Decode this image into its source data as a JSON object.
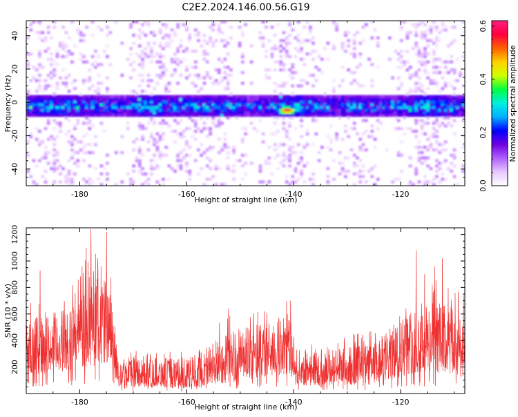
{
  "title": "C2E2.2024.146.00.56.G19",
  "chart_data": [
    {
      "type": "heatmap",
      "xlabel": "Height of straight line (km)",
      "ylabel": "Frequency (Hz)",
      "xlim": [
        -190,
        -108
      ],
      "ylim": [
        -50,
        49
      ],
      "xticks": [
        -180,
        -160,
        -140,
        -120
      ],
      "yticks": [
        -40,
        -20,
        0,
        20,
        40
      ],
      "colorbar": {
        "label": "Normalized spectral amplitude",
        "range": [
          0.0,
          0.62
        ],
        "ticks": [
          0.0,
          0.2,
          0.4,
          0.6
        ],
        "colors": [
          "#ffffff",
          "#e8c8ff",
          "#b060ff",
          "#7000e0",
          "#0000ff",
          "#00b0ff",
          "#00f0e0",
          "#00ff40",
          "#d0ff00",
          "#ffd000",
          "#ff6000",
          "#ff0040",
          "#ff2080"
        ]
      },
      "band": {
        "center_frequency": -3,
        "half_width": 6,
        "peak": {
          "x": -141.5,
          "y": -5.5,
          "value": 0.62
        }
      },
      "grid": false
    },
    {
      "type": "line",
      "xlabel": "Height of straight line (km)",
      "ylabel": "SNR (10 * v/v)",
      "xlim": [
        -190,
        -108
      ],
      "ylim": [
        0,
        1250
      ],
      "xticks": [
        -180,
        -160,
        -140,
        -120
      ],
      "yticks": [
        200,
        400,
        600,
        800,
        1000,
        1200
      ],
      "color": "#f03030",
      "envelope": [
        {
          "x": -190,
          "low": 150,
          "high": 550
        },
        {
          "x": -186,
          "low": 150,
          "high": 600
        },
        {
          "x": -182,
          "low": 170,
          "high": 650
        },
        {
          "x": -178,
          "low": 200,
          "high": 900
        },
        {
          "x": -176,
          "low": 220,
          "high": 950
        },
        {
          "x": -174,
          "low": 200,
          "high": 700
        },
        {
          "x": -173,
          "low": 60,
          "high": 300
        },
        {
          "x": -160,
          "low": 40,
          "high": 260
        },
        {
          "x": -152,
          "low": 80,
          "high": 480
        },
        {
          "x": -146,
          "low": 120,
          "high": 520
        },
        {
          "x": -141,
          "low": 150,
          "high": 600
        },
        {
          "x": -139,
          "low": 60,
          "high": 330
        },
        {
          "x": -125,
          "low": 60,
          "high": 380
        },
        {
          "x": -118,
          "low": 150,
          "high": 650
        },
        {
          "x": -113,
          "low": 150,
          "high": 700
        },
        {
          "x": -108,
          "low": 120,
          "high": 600
        }
      ],
      "peaks": [
        {
          "x": -177.9,
          "y": 1240
        },
        {
          "x": -175.0,
          "y": 1220
        },
        {
          "x": -178.8,
          "y": 1100
        },
        {
          "x": -180.3,
          "y": 860
        },
        {
          "x": -187.4,
          "y": 930
        },
        {
          "x": -117.1,
          "y": 1080
        },
        {
          "x": -113.6,
          "y": 960
        },
        {
          "x": -112.2,
          "y": 1020
        },
        {
          "x": -115.5,
          "y": 900
        },
        {
          "x": -140.6,
          "y": 700
        },
        {
          "x": -152.2,
          "y": 640
        },
        {
          "x": -145.5,
          "y": 620
        },
        {
          "x": -109.8,
          "y": 760
        }
      ],
      "grid": false
    }
  ]
}
